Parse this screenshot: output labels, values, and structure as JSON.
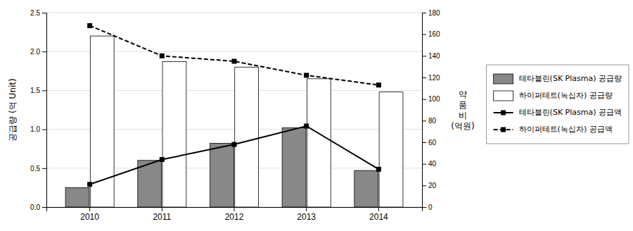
{
  "chart_data": {
    "type": "bar",
    "categories": [
      "2010",
      "2011",
      "2012",
      "2013",
      "2014"
    ],
    "ylabel": "공급량 (억 Unit)",
    "y2label": [
      "약",
      "품",
      "비",
      "(억원)"
    ],
    "ylim": [
      0,
      2.5
    ],
    "yticks": [
      {
        "value": 0,
        "label": "0.0"
      },
      0.5,
      {
        "value": 1.0,
        "label": "1.0"
      },
      1.5,
      {
        "value": 2.0,
        "label": "2.0"
      },
      2.5
    ],
    "y2lim": [
      0,
      180
    ],
    "y2ticks": [
      0,
      20,
      40,
      60,
      80,
      100,
      120,
      140,
      160,
      180
    ],
    "grid": true,
    "legend": "right",
    "series": [
      {
        "name": "테타블린(SK Plasma) 공급량",
        "type": "bar",
        "color": "#888888",
        "values": [
          0.25,
          0.6,
          0.82,
          1.02,
          0.47
        ]
      },
      {
        "name": "하이퍼테트(녹십자) 공급량",
        "type": "bar",
        "color": "#ffffff",
        "values": [
          2.2,
          1.87,
          1.8,
          1.65,
          1.48
        ]
      },
      {
        "name": "테타블린(SK Plasma) 공급액",
        "type": "line",
        "axis": "y2",
        "color": "#000000",
        "marker": "square",
        "line_style": "solid",
        "values": [
          21,
          44,
          58,
          75,
          35
        ]
      },
      {
        "name": "하이퍼테트(녹십자) 공급액",
        "type": "line",
        "axis": "y2",
        "color": "#000000",
        "marker": "square",
        "line_style": "dashed",
        "values": [
          168,
          140,
          135,
          122,
          113
        ]
      }
    ]
  }
}
